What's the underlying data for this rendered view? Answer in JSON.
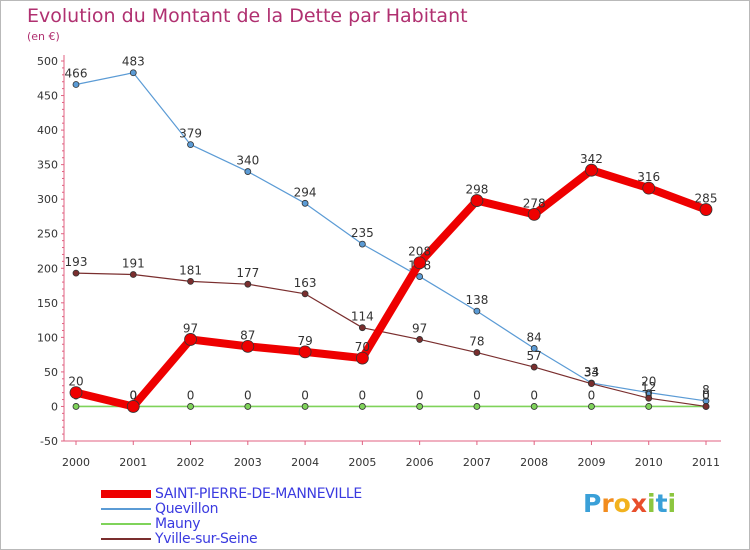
{
  "chart_data": {
    "type": "line",
    "title": "Evolution du Montant de la Dette par Habitant",
    "unit_label": "(en €)",
    "categories": [
      "2000",
      "2001",
      "2002",
      "2003",
      "2004",
      "2005",
      "2006",
      "2007",
      "2008",
      "2009",
      "2010",
      "2011"
    ],
    "ylim": [
      -50,
      500
    ],
    "yticks": [
      -50,
      0,
      50,
      100,
      150,
      200,
      250,
      300,
      350,
      400,
      450,
      500
    ],
    "grid": false,
    "legend_position": "bottom-left",
    "series": [
      {
        "name": "Quevillon",
        "color": "#5b9bd5",
        "values": [
          466,
          483,
          379,
          340,
          294,
          235,
          188,
          138,
          84,
          34,
          20,
          8
        ]
      },
      {
        "name": "Mauny",
        "color": "#7fd35a",
        "values": [
          0,
          0,
          0,
          0,
          0,
          0,
          0,
          0,
          0,
          0,
          0,
          0
        ]
      },
      {
        "name": "Yville-sur-Seine",
        "color": "#7a2e2e",
        "values": [
          193,
          191,
          181,
          177,
          163,
          114,
          97,
          78,
          57,
          33,
          12,
          0
        ]
      },
      {
        "name": "SAINT-PIERRE-DE-MANNEVILLE",
        "color": "#ee0000",
        "values": [
          20,
          0,
          97,
          87,
          79,
          70,
          208,
          298,
          278,
          342,
          316,
          285
        ]
      }
    ],
    "legend_order": [
      "SAINT-PIERRE-DE-MANNEVILLE",
      "Quevillon",
      "Mauny",
      "Yville-sur-Seine"
    ]
  },
  "logo": {
    "letters": [
      {
        "ch": "P",
        "color": "#3aa0d8"
      },
      {
        "ch": "r",
        "color": "#f28c1e"
      },
      {
        "ch": "o",
        "color": "#f2b21e"
      },
      {
        "ch": "x",
        "color": "#e84e2b"
      },
      {
        "ch": "i",
        "color": "#8cc63f"
      },
      {
        "ch": "t",
        "color": "#3aa0d8"
      },
      {
        "ch": "i",
        "color": "#8cc63f"
      }
    ]
  }
}
